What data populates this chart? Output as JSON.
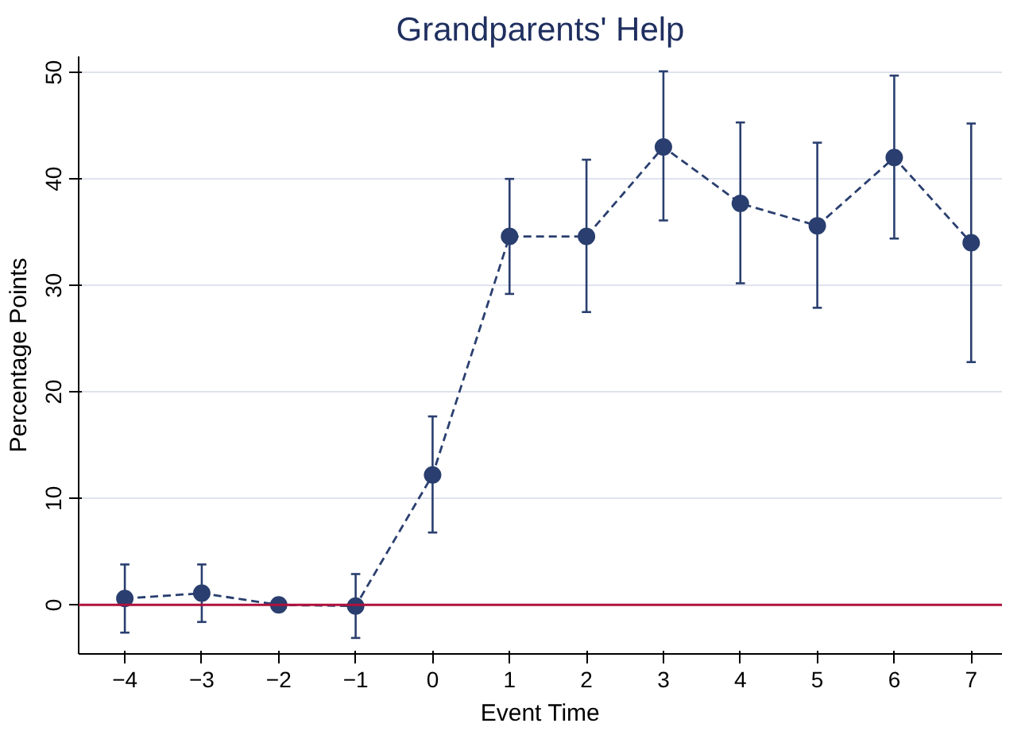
{
  "chart_data": {
    "type": "line",
    "title": "Grandparents' Help",
    "xlabel": "Event Time",
    "ylabel": "Percentage Points",
    "x": [
      -4,
      -3,
      -2,
      -1,
      0,
      1,
      2,
      3,
      4,
      5,
      6,
      7
    ],
    "series": [
      {
        "color": "#2a3f6f",
        "values": [
          0.6,
          1.1,
          0.0,
          -0.1,
          12.2,
          34.6,
          34.6,
          43.0,
          37.7,
          35.6,
          42.0,
          34.0
        ],
        "errors": [
          [
            -2.6,
            3.8
          ],
          [
            -1.6,
            3.8
          ],
          null,
          [
            -3.1,
            2.9
          ],
          [
            6.8,
            17.7
          ],
          [
            29.2,
            40.0
          ],
          [
            27.5,
            41.8
          ],
          [
            36.1,
            50.1
          ],
          [
            30.2,
            45.3
          ],
          [
            27.9,
            43.4
          ],
          [
            34.4,
            49.7
          ],
          [
            22.8,
            45.2
          ]
        ]
      }
    ],
    "xlim": [
      -4.6,
      7.4
    ],
    "ylim": [
      -4.6,
      51.5
    ],
    "xticks": [
      -4,
      -3,
      -2,
      -1,
      0,
      1,
      2,
      3,
      4,
      5,
      6,
      7
    ],
    "yticks": [
      0,
      10,
      20,
      30,
      40,
      50
    ],
    "ref_lines": [
      {
        "axis": "y",
        "value": 0,
        "color": "#b0123c"
      }
    ],
    "grid": "y",
    "marker": "circle",
    "line_style": "dashed"
  }
}
